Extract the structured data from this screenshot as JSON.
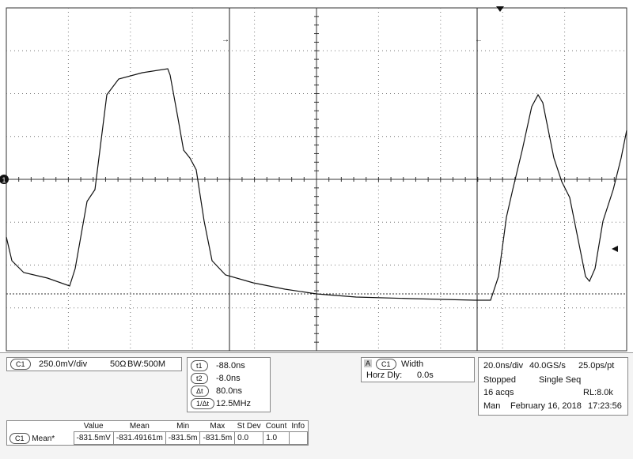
{
  "channel": {
    "badge": "C1",
    "scale": "250.0mV/div",
    "impedance": "50Ω",
    "bandwidth": "BW:500M",
    "marker": "1"
  },
  "cursors": {
    "rows": [
      {
        "label": "t1",
        "value": "-88.0ns"
      },
      {
        "label": "t2",
        "value": "-8.0ns"
      },
      {
        "label": "Δt",
        "value": "80.0ns"
      },
      {
        "label": "1/Δt",
        "value": "12.5MHz"
      }
    ]
  },
  "trigger": {
    "letter": "A",
    "source": "C1",
    "type": "Width",
    "delay_label": "Horz Dly:",
    "delay": "0.0s"
  },
  "timebase": {
    "scale": "20.0ns/div",
    "rate": "40.0GS/s",
    "resolution": "25.0ps/pt",
    "state": "Stopped",
    "mode": "Single Seq",
    "acqs": "16 acqs",
    "record": "RL:8.0k",
    "trigger_mode": "Man",
    "date": "February 16, 2018",
    "time": "17:23:56"
  },
  "table": {
    "headers": [
      "Value",
      "Mean",
      "Min",
      "Max",
      "St Dev",
      "Count",
      "Info"
    ],
    "row": {
      "source": "C1",
      "name": "Mean*",
      "cells": [
        "-831.5mV",
        "-831.49161m",
        "-831.5m",
        "-831.5m",
        "0.0",
        "1.0"
      ]
    }
  }
}
